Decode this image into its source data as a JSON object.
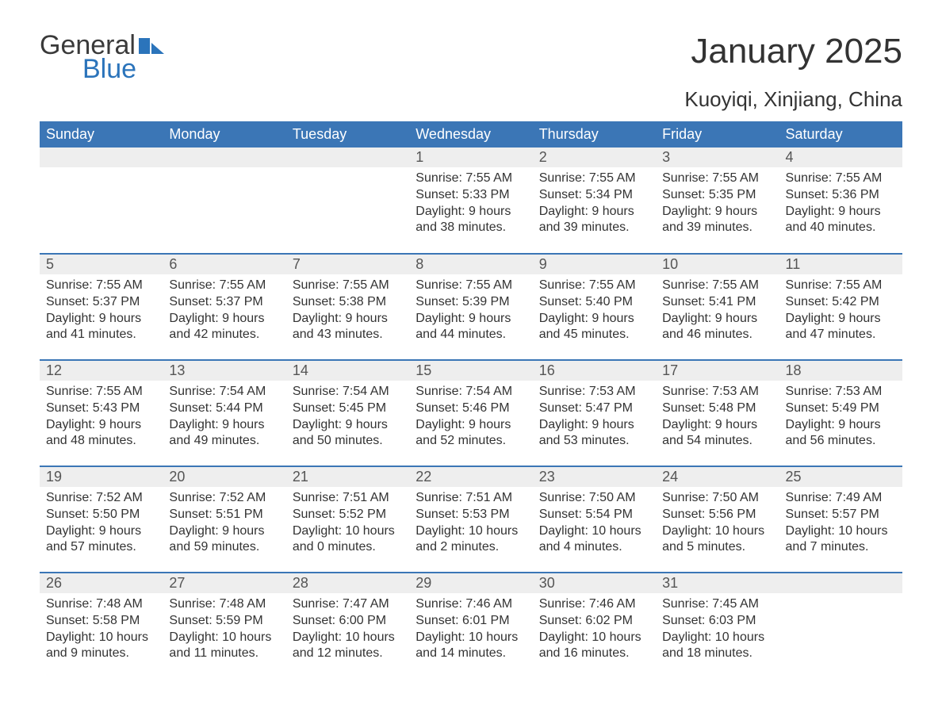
{
  "logo": {
    "text1": "General",
    "text2": "Blue",
    "brand_color": "#2b74bb"
  },
  "header": {
    "month_title": "January 2025",
    "location": "Kuoyiqi, Xinjiang, China"
  },
  "calendar": {
    "header_bg": "#3b76b6",
    "header_fg": "#ffffff",
    "daybar_bg": "#eeeeee",
    "rule_color": "#3b76b6",
    "text_color": "#333333",
    "columns": [
      "Sunday",
      "Monday",
      "Tuesday",
      "Wednesday",
      "Thursday",
      "Friday",
      "Saturday"
    ],
    "weeks": [
      [
        null,
        null,
        null,
        {
          "day": "1",
          "sunrise": "Sunrise: 7:55 AM",
          "sunset": "Sunset: 5:33 PM",
          "daylight": "Daylight: 9 hours and 38 minutes."
        },
        {
          "day": "2",
          "sunrise": "Sunrise: 7:55 AM",
          "sunset": "Sunset: 5:34 PM",
          "daylight": "Daylight: 9 hours and 39 minutes."
        },
        {
          "day": "3",
          "sunrise": "Sunrise: 7:55 AM",
          "sunset": "Sunset: 5:35 PM",
          "daylight": "Daylight: 9 hours and 39 minutes."
        },
        {
          "day": "4",
          "sunrise": "Sunrise: 7:55 AM",
          "sunset": "Sunset: 5:36 PM",
          "daylight": "Daylight: 9 hours and 40 minutes."
        }
      ],
      [
        {
          "day": "5",
          "sunrise": "Sunrise: 7:55 AM",
          "sunset": "Sunset: 5:37 PM",
          "daylight": "Daylight: 9 hours and 41 minutes."
        },
        {
          "day": "6",
          "sunrise": "Sunrise: 7:55 AM",
          "sunset": "Sunset: 5:37 PM",
          "daylight": "Daylight: 9 hours and 42 minutes."
        },
        {
          "day": "7",
          "sunrise": "Sunrise: 7:55 AM",
          "sunset": "Sunset: 5:38 PM",
          "daylight": "Daylight: 9 hours and 43 minutes."
        },
        {
          "day": "8",
          "sunrise": "Sunrise: 7:55 AM",
          "sunset": "Sunset: 5:39 PM",
          "daylight": "Daylight: 9 hours and 44 minutes."
        },
        {
          "day": "9",
          "sunrise": "Sunrise: 7:55 AM",
          "sunset": "Sunset: 5:40 PM",
          "daylight": "Daylight: 9 hours and 45 minutes."
        },
        {
          "day": "10",
          "sunrise": "Sunrise: 7:55 AM",
          "sunset": "Sunset: 5:41 PM",
          "daylight": "Daylight: 9 hours and 46 minutes."
        },
        {
          "day": "11",
          "sunrise": "Sunrise: 7:55 AM",
          "sunset": "Sunset: 5:42 PM",
          "daylight": "Daylight: 9 hours and 47 minutes."
        }
      ],
      [
        {
          "day": "12",
          "sunrise": "Sunrise: 7:55 AM",
          "sunset": "Sunset: 5:43 PM",
          "daylight": "Daylight: 9 hours and 48 minutes."
        },
        {
          "day": "13",
          "sunrise": "Sunrise: 7:54 AM",
          "sunset": "Sunset: 5:44 PM",
          "daylight": "Daylight: 9 hours and 49 minutes."
        },
        {
          "day": "14",
          "sunrise": "Sunrise: 7:54 AM",
          "sunset": "Sunset: 5:45 PM",
          "daylight": "Daylight: 9 hours and 50 minutes."
        },
        {
          "day": "15",
          "sunrise": "Sunrise: 7:54 AM",
          "sunset": "Sunset: 5:46 PM",
          "daylight": "Daylight: 9 hours and 52 minutes."
        },
        {
          "day": "16",
          "sunrise": "Sunrise: 7:53 AM",
          "sunset": "Sunset: 5:47 PM",
          "daylight": "Daylight: 9 hours and 53 minutes."
        },
        {
          "day": "17",
          "sunrise": "Sunrise: 7:53 AM",
          "sunset": "Sunset: 5:48 PM",
          "daylight": "Daylight: 9 hours and 54 minutes."
        },
        {
          "day": "18",
          "sunrise": "Sunrise: 7:53 AM",
          "sunset": "Sunset: 5:49 PM",
          "daylight": "Daylight: 9 hours and 56 minutes."
        }
      ],
      [
        {
          "day": "19",
          "sunrise": "Sunrise: 7:52 AM",
          "sunset": "Sunset: 5:50 PM",
          "daylight": "Daylight: 9 hours and 57 minutes."
        },
        {
          "day": "20",
          "sunrise": "Sunrise: 7:52 AM",
          "sunset": "Sunset: 5:51 PM",
          "daylight": "Daylight: 9 hours and 59 minutes."
        },
        {
          "day": "21",
          "sunrise": "Sunrise: 7:51 AM",
          "sunset": "Sunset: 5:52 PM",
          "daylight": "Daylight: 10 hours and 0 minutes."
        },
        {
          "day": "22",
          "sunrise": "Sunrise: 7:51 AM",
          "sunset": "Sunset: 5:53 PM",
          "daylight": "Daylight: 10 hours and 2 minutes."
        },
        {
          "day": "23",
          "sunrise": "Sunrise: 7:50 AM",
          "sunset": "Sunset: 5:54 PM",
          "daylight": "Daylight: 10 hours and 4 minutes."
        },
        {
          "day": "24",
          "sunrise": "Sunrise: 7:50 AM",
          "sunset": "Sunset: 5:56 PM",
          "daylight": "Daylight: 10 hours and 5 minutes."
        },
        {
          "day": "25",
          "sunrise": "Sunrise: 7:49 AM",
          "sunset": "Sunset: 5:57 PM",
          "daylight": "Daylight: 10 hours and 7 minutes."
        }
      ],
      [
        {
          "day": "26",
          "sunrise": "Sunrise: 7:48 AM",
          "sunset": "Sunset: 5:58 PM",
          "daylight": "Daylight: 10 hours and 9 minutes."
        },
        {
          "day": "27",
          "sunrise": "Sunrise: 7:48 AM",
          "sunset": "Sunset: 5:59 PM",
          "daylight": "Daylight: 10 hours and 11 minutes."
        },
        {
          "day": "28",
          "sunrise": "Sunrise: 7:47 AM",
          "sunset": "Sunset: 6:00 PM",
          "daylight": "Daylight: 10 hours and 12 minutes."
        },
        {
          "day": "29",
          "sunrise": "Sunrise: 7:46 AM",
          "sunset": "Sunset: 6:01 PM",
          "daylight": "Daylight: 10 hours and 14 minutes."
        },
        {
          "day": "30",
          "sunrise": "Sunrise: 7:46 AM",
          "sunset": "Sunset: 6:02 PM",
          "daylight": "Daylight: 10 hours and 16 minutes."
        },
        {
          "day": "31",
          "sunrise": "Sunrise: 7:45 AM",
          "sunset": "Sunset: 6:03 PM",
          "daylight": "Daylight: 10 hours and 18 minutes."
        },
        null
      ]
    ]
  }
}
